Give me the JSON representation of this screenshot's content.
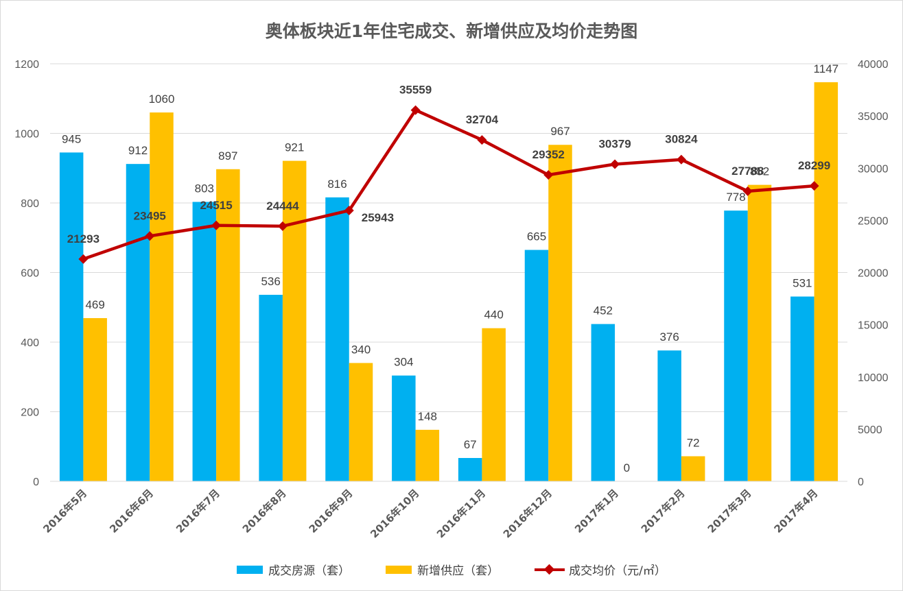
{
  "chart_data": {
    "type": "bar",
    "title": "奥体板块近1年住宅成交、新增供应及均价走势图",
    "categories": [
      "2016年5月",
      "2016年6月",
      "2016年7月",
      "2016年8月",
      "2016年9月",
      "2016年10月",
      "2016年11月",
      "2016年12月",
      "2017年1月",
      "2017年2月",
      "2017年3月",
      "2017年4月"
    ],
    "series": [
      {
        "name": "成交房源（套）",
        "type": "bar",
        "axis": "left",
        "color": "#00b0f0",
        "values": [
          945,
          912,
          803,
          536,
          816,
          304,
          67,
          665,
          452,
          376,
          778,
          531
        ],
        "labels": [
          "945",
          "912",
          "803",
          "536",
          "816",
          "304",
          "67",
          "665",
          "452",
          "376",
          "778",
          "531"
        ]
      },
      {
        "name": "新增供应（套）",
        "type": "bar",
        "axis": "left",
        "color": "#ffc000",
        "values": [
          469,
          1060,
          897,
          921,
          340,
          148,
          440,
          967,
          0,
          72,
          852,
          1147
        ],
        "labels": [
          "469",
          "1060",
          "897",
          "921",
          "340",
          "148",
          "440",
          "967",
          "0",
          "72",
          "852",
          "1147"
        ]
      },
      {
        "name": "成交均价（元/㎡）",
        "type": "line",
        "axis": "right",
        "color": "#c00000",
        "values": [
          21293,
          23495,
          24515,
          24444,
          25943,
          35559,
          32704,
          29352,
          30379,
          30824,
          27788,
          28299
        ],
        "labels": [
          "21293",
          "23495",
          "24515",
          "24444",
          "25943",
          "35559",
          "32704",
          "29352",
          "30379",
          "30824",
          "27788",
          "28299"
        ]
      }
    ],
    "y_left": {
      "range": [
        0,
        1200
      ],
      "ticks": [
        "0",
        "200",
        "400",
        "600",
        "800",
        "1000",
        "1200"
      ]
    },
    "y_right": {
      "range": [
        0,
        40000
      ],
      "ticks": [
        "0",
        "5000",
        "10000",
        "15000",
        "20000",
        "25000",
        "30000",
        "35000",
        "40000"
      ]
    },
    "grid": true,
    "legend_position": "bottom"
  }
}
